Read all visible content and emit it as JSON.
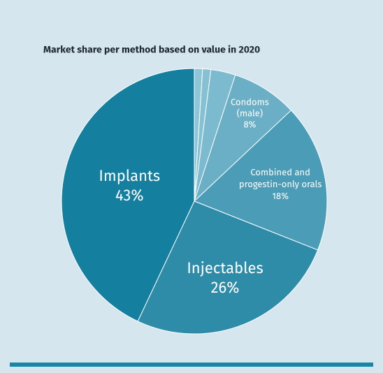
{
  "chart_data": {
    "type": "pie",
    "title": "Market share per method based on value in 2020",
    "categories": [
      null,
      null,
      null,
      [
        "Condoms",
        "(male)"
      ],
      [
        "Combined and",
        "progestin-only orals"
      ],
      [
        "Injectables"
      ],
      [
        "Implants"
      ]
    ],
    "values": [
      1,
      1,
      3,
      8,
      18,
      26,
      43
    ],
    "value_labels": [
      null,
      null,
      null,
      "8%",
      "18%",
      "26%",
      "43%"
    ],
    "colors": [
      "#8fc6d7",
      "#86c0d3",
      "#7cbad0",
      "#6aafc6",
      "#4a9cb7",
      "#2e8ca9",
      "#147f9f"
    ]
  }
}
